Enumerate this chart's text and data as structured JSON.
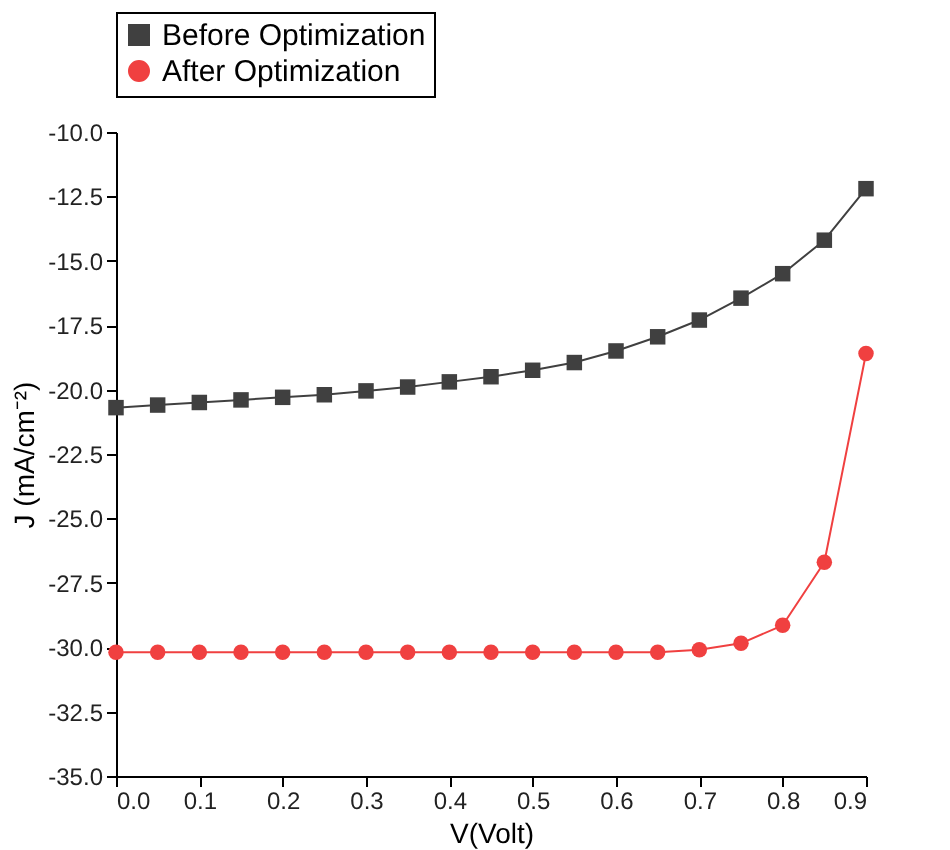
{
  "chart_data": {
    "type": "line",
    "xlabel": "V(Volt)",
    "ylabel": "J (mA/cm⁻²)",
    "x": [
      0,
      0.05,
      0.1,
      0.15,
      0.2,
      0.25,
      0.3,
      0.35,
      0.4,
      0.45,
      0.5,
      0.55,
      0.6,
      0.65,
      0.7,
      0.75,
      0.8,
      0.85,
      0.9
    ],
    "series": [
      {
        "name": "Before Optimization",
        "color": "#404040",
        "marker": "square",
        "values": [
          -20.7,
          -20.6,
          -20.5,
          -20.4,
          -20.3,
          -20.2,
          -20.05,
          -19.9,
          -19.7,
          -19.5,
          -19.25,
          -18.95,
          -18.5,
          -17.95,
          -17.3,
          -16.45,
          -15.5,
          -14.2,
          -12.2
        ]
      },
      {
        "name": "After  Optimization",
        "color": "#f04040",
        "marker": "circle",
        "values": [
          -30.2,
          -30.2,
          -30.2,
          -30.2,
          -30.2,
          -30.2,
          -30.2,
          -30.2,
          -30.2,
          -30.2,
          -30.2,
          -30.2,
          -30.2,
          -30.2,
          -30.1,
          -29.85,
          -29.15,
          -26.7,
          -18.6
        ]
      }
    ],
    "xlim": [
      0,
      0.9
    ],
    "xticks": [
      {
        "value": 0,
        "label": "0.0"
      },
      0.1,
      0.2,
      0.3,
      0.4,
      0.5,
      0.6,
      0.7,
      0.8,
      0.9
    ],
    "ylim": [
      -35,
      -10
    ],
    "yticks": [
      {
        "value": -35,
        "label": "-35.0"
      },
      -32.5,
      {
        "value": -30,
        "label": "-30.0"
      },
      -27.5,
      {
        "value": -25,
        "label": "-25.0"
      },
      -22.5,
      {
        "value": -20,
        "label": "-20.0"
      },
      -17.5,
      {
        "value": -15,
        "label": "-15.0"
      },
      -12.5,
      {
        "value": -10,
        "label": "-10.0"
      }
    ],
    "grid": false,
    "legend": "top",
    "line_style": "solid"
  }
}
